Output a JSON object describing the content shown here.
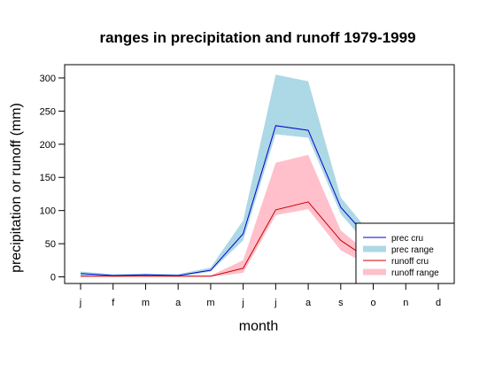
{
  "chart_data": {
    "type": "area",
    "title": "ranges in precipitation and runoff 1979-1999",
    "xlabel": "month",
    "ylabel": "precipitation or runoff (mm)",
    "categories": [
      "j",
      "f",
      "m",
      "a",
      "m",
      "j",
      "j",
      "a",
      "s",
      "o",
      "n",
      "d"
    ],
    "ylim": [
      -10,
      320
    ],
    "yticks": [
      0,
      50,
      100,
      150,
      200,
      250,
      300
    ],
    "grid": false,
    "legend_position": "bottom-right",
    "bands": [
      {
        "name": "prec range",
        "color": "#add8e6",
        "lower": [
          2,
          1,
          1,
          0,
          8,
          55,
          215,
          210,
          95,
          38,
          20,
          3
        ],
        "upper": [
          8,
          4,
          5,
          4,
          14,
          85,
          305,
          295,
          120,
          60,
          30,
          8
        ]
      },
      {
        "name": "runoff range",
        "color": "#ffc0cb",
        "lower": [
          0,
          0,
          0,
          0,
          0,
          6,
          93,
          102,
          40,
          14,
          5,
          1
        ],
        "upper": [
          2,
          2,
          2,
          2,
          2,
          25,
          172,
          184,
          70,
          30,
          12,
          3
        ]
      }
    ],
    "series": [
      {
        "name": "prec cru",
        "color": "#0000cc",
        "values": [
          5,
          2,
          3,
          2,
          10,
          65,
          228,
          221,
          105,
          50,
          26,
          6
        ]
      },
      {
        "name": "runoff cru",
        "color": "#cc0000",
        "values": [
          1,
          1,
          1,
          1,
          1,
          13,
          101,
          113,
          55,
          22,
          8,
          2
        ]
      }
    ],
    "legend": [
      {
        "label": "prec cru",
        "kind": "line",
        "color": "#0000cc"
      },
      {
        "label": "prec range",
        "kind": "band",
        "color": "#add8e6"
      },
      {
        "label": "runoff cru",
        "kind": "line",
        "color": "#cc0000"
      },
      {
        "label": "runoff range",
        "kind": "band",
        "color": "#ffc0cb"
      }
    ]
  }
}
